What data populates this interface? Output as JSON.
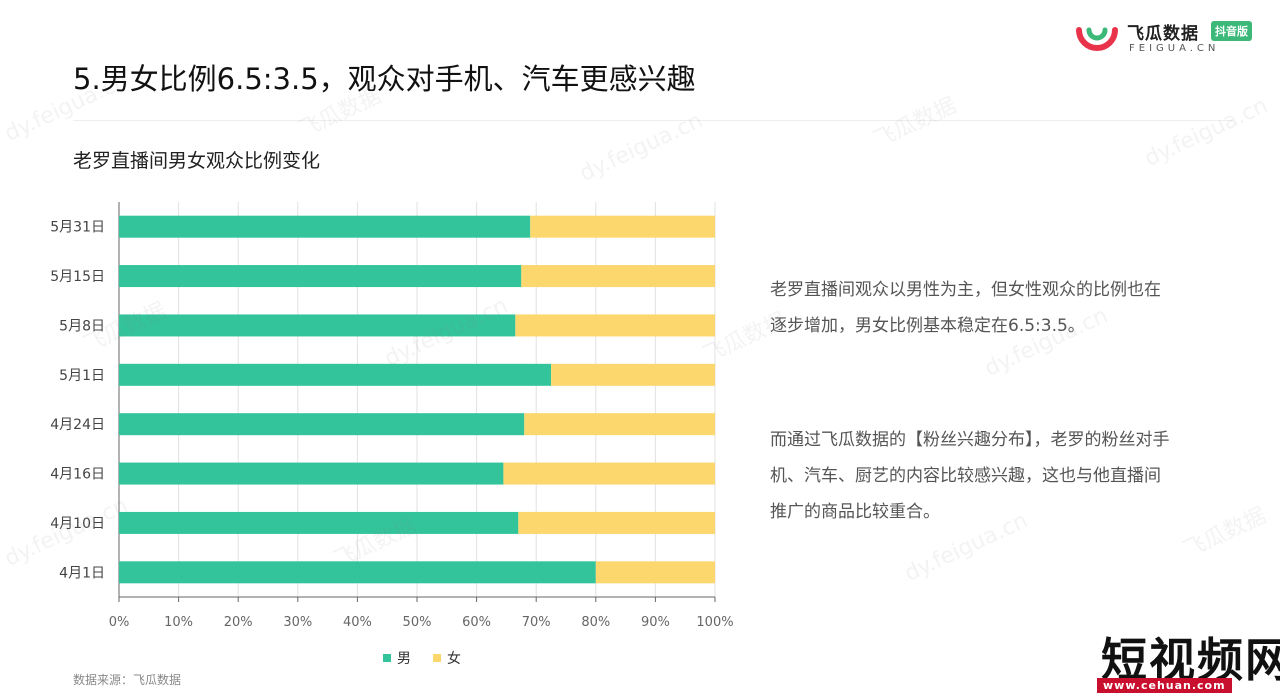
{
  "logo": {
    "name_cn": "飞瓜数据",
    "badge": "抖音版",
    "domain": "FEIGUA.CN"
  },
  "page_title": "5.男女比例6.5:3.5，观众对手机、汽车更感兴趣",
  "chart_title": "老罗直播间男女观众比例变化",
  "description": {
    "p1": "老罗直播间观众以男性为主，但女性观众的比例也在逐步增加，男女比例基本稳定在6.5:3.5。",
    "p2": "而通过飞瓜数据的【粉丝兴趣分布】，老罗的粉丝对手机、汽车、厨艺的内容比较感兴趣，这也与他直播间推广的商品比较重合。"
  },
  "source": "数据来源：飞瓜数据",
  "brand": {
    "name": "短视频网",
    "url": "www.cehuan.com"
  },
  "watermark": {
    "text_cn": "飞瓜数据",
    "text_url": "dy.feigua.cn"
  },
  "colors": {
    "male": "#34c49b",
    "female": "#fcd76d",
    "axis": "#666666",
    "grid": "#e2e2e2"
  },
  "chart_data": {
    "type": "bar",
    "orientation": "horizontal",
    "stacked": true,
    "percent": true,
    "categories": [
      "5月31日",
      "5月15日",
      "5月8日",
      "5月1日",
      "4月24日",
      "4月16日",
      "4月10日",
      "4月1日"
    ],
    "series": [
      {
        "name": "男",
        "values": [
          69,
          67.5,
          66.5,
          72.5,
          68,
          64.5,
          67,
          80
        ]
      },
      {
        "name": "女",
        "values": [
          31,
          32.5,
          33.5,
          27.5,
          32,
          35.5,
          33,
          20
        ]
      }
    ],
    "x_ticks": [
      "0%",
      "10%",
      "20%",
      "30%",
      "40%",
      "50%",
      "60%",
      "70%",
      "80%",
      "90%",
      "100%"
    ],
    "xlim": [
      0,
      100
    ],
    "grid": true,
    "legend": "bottom-center"
  }
}
